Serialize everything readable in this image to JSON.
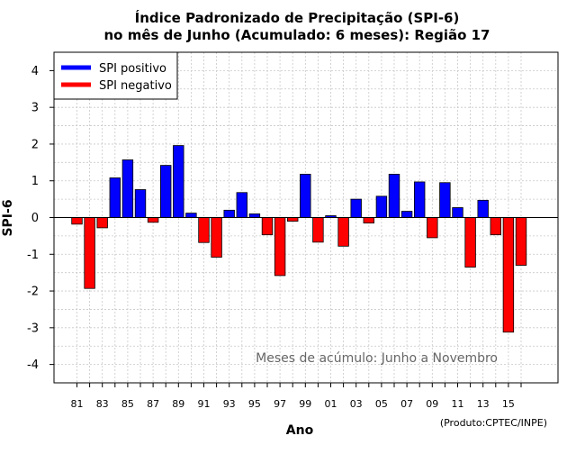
{
  "chart_data": {
    "type": "bar",
    "title": "Índice Padronizado de Precipitação (SPI-6)",
    "subtitle": "no mês de Junho (Acumulado: 6 meses): Região 17",
    "xlabel": "Ano",
    "ylabel": "SPI-6",
    "ylim": [
      -4.5,
      4.5
    ],
    "yticks": [
      -4,
      -3,
      -2,
      -1,
      0,
      1,
      2,
      3,
      4
    ],
    "x": [
      1981,
      1982,
      1983,
      1984,
      1985,
      1986,
      1987,
      1988,
      1989,
      1990,
      1991,
      1992,
      1993,
      1994,
      1995,
      1996,
      1997,
      1998,
      1999,
      2000,
      2001,
      2002,
      2003,
      2004,
      2005,
      2006,
      2007,
      2008,
      2009,
      2010,
      2011,
      2012,
      2013,
      2014,
      2015,
      2016
    ],
    "xtick_labels": [
      "81",
      "83",
      "85",
      "87",
      "89",
      "91",
      "93",
      "95",
      "97",
      "99",
      "01",
      "03",
      "05",
      "07",
      "09",
      "11",
      "13",
      "15"
    ],
    "xtick_years": [
      1981,
      1983,
      1985,
      1987,
      1989,
      1991,
      1993,
      1995,
      1997,
      1999,
      2001,
      2003,
      2005,
      2007,
      2009,
      2011,
      2013,
      2015
    ],
    "values": [
      -0.18,
      -1.93,
      -0.28,
      1.08,
      1.57,
      0.76,
      -0.13,
      1.42,
      1.96,
      0.12,
      -0.68,
      -1.08,
      0.2,
      0.68,
      0.1,
      -0.47,
      -1.58,
      -0.1,
      1.18,
      -0.67,
      0.05,
      -0.78,
      0.5,
      -0.15,
      0.58,
      1.18,
      0.17,
      0.97,
      -0.55,
      0.95,
      0.27,
      -1.35,
      0.47,
      -0.47,
      -3.12,
      -1.3
    ],
    "legend": {
      "position": "top-left",
      "entries": [
        {
          "label": "SPI positivo",
          "color": "#0000ff"
        },
        {
          "label": "SPI negativo",
          "color": "#ff0000"
        }
      ]
    },
    "colors": {
      "positive": "#0000ff",
      "negative": "#ff0000"
    },
    "grid": true,
    "annotation": "Meses de acúmulo: Junho a Novembro",
    "credit": "(Produto:CPTEC/INPE)"
  }
}
